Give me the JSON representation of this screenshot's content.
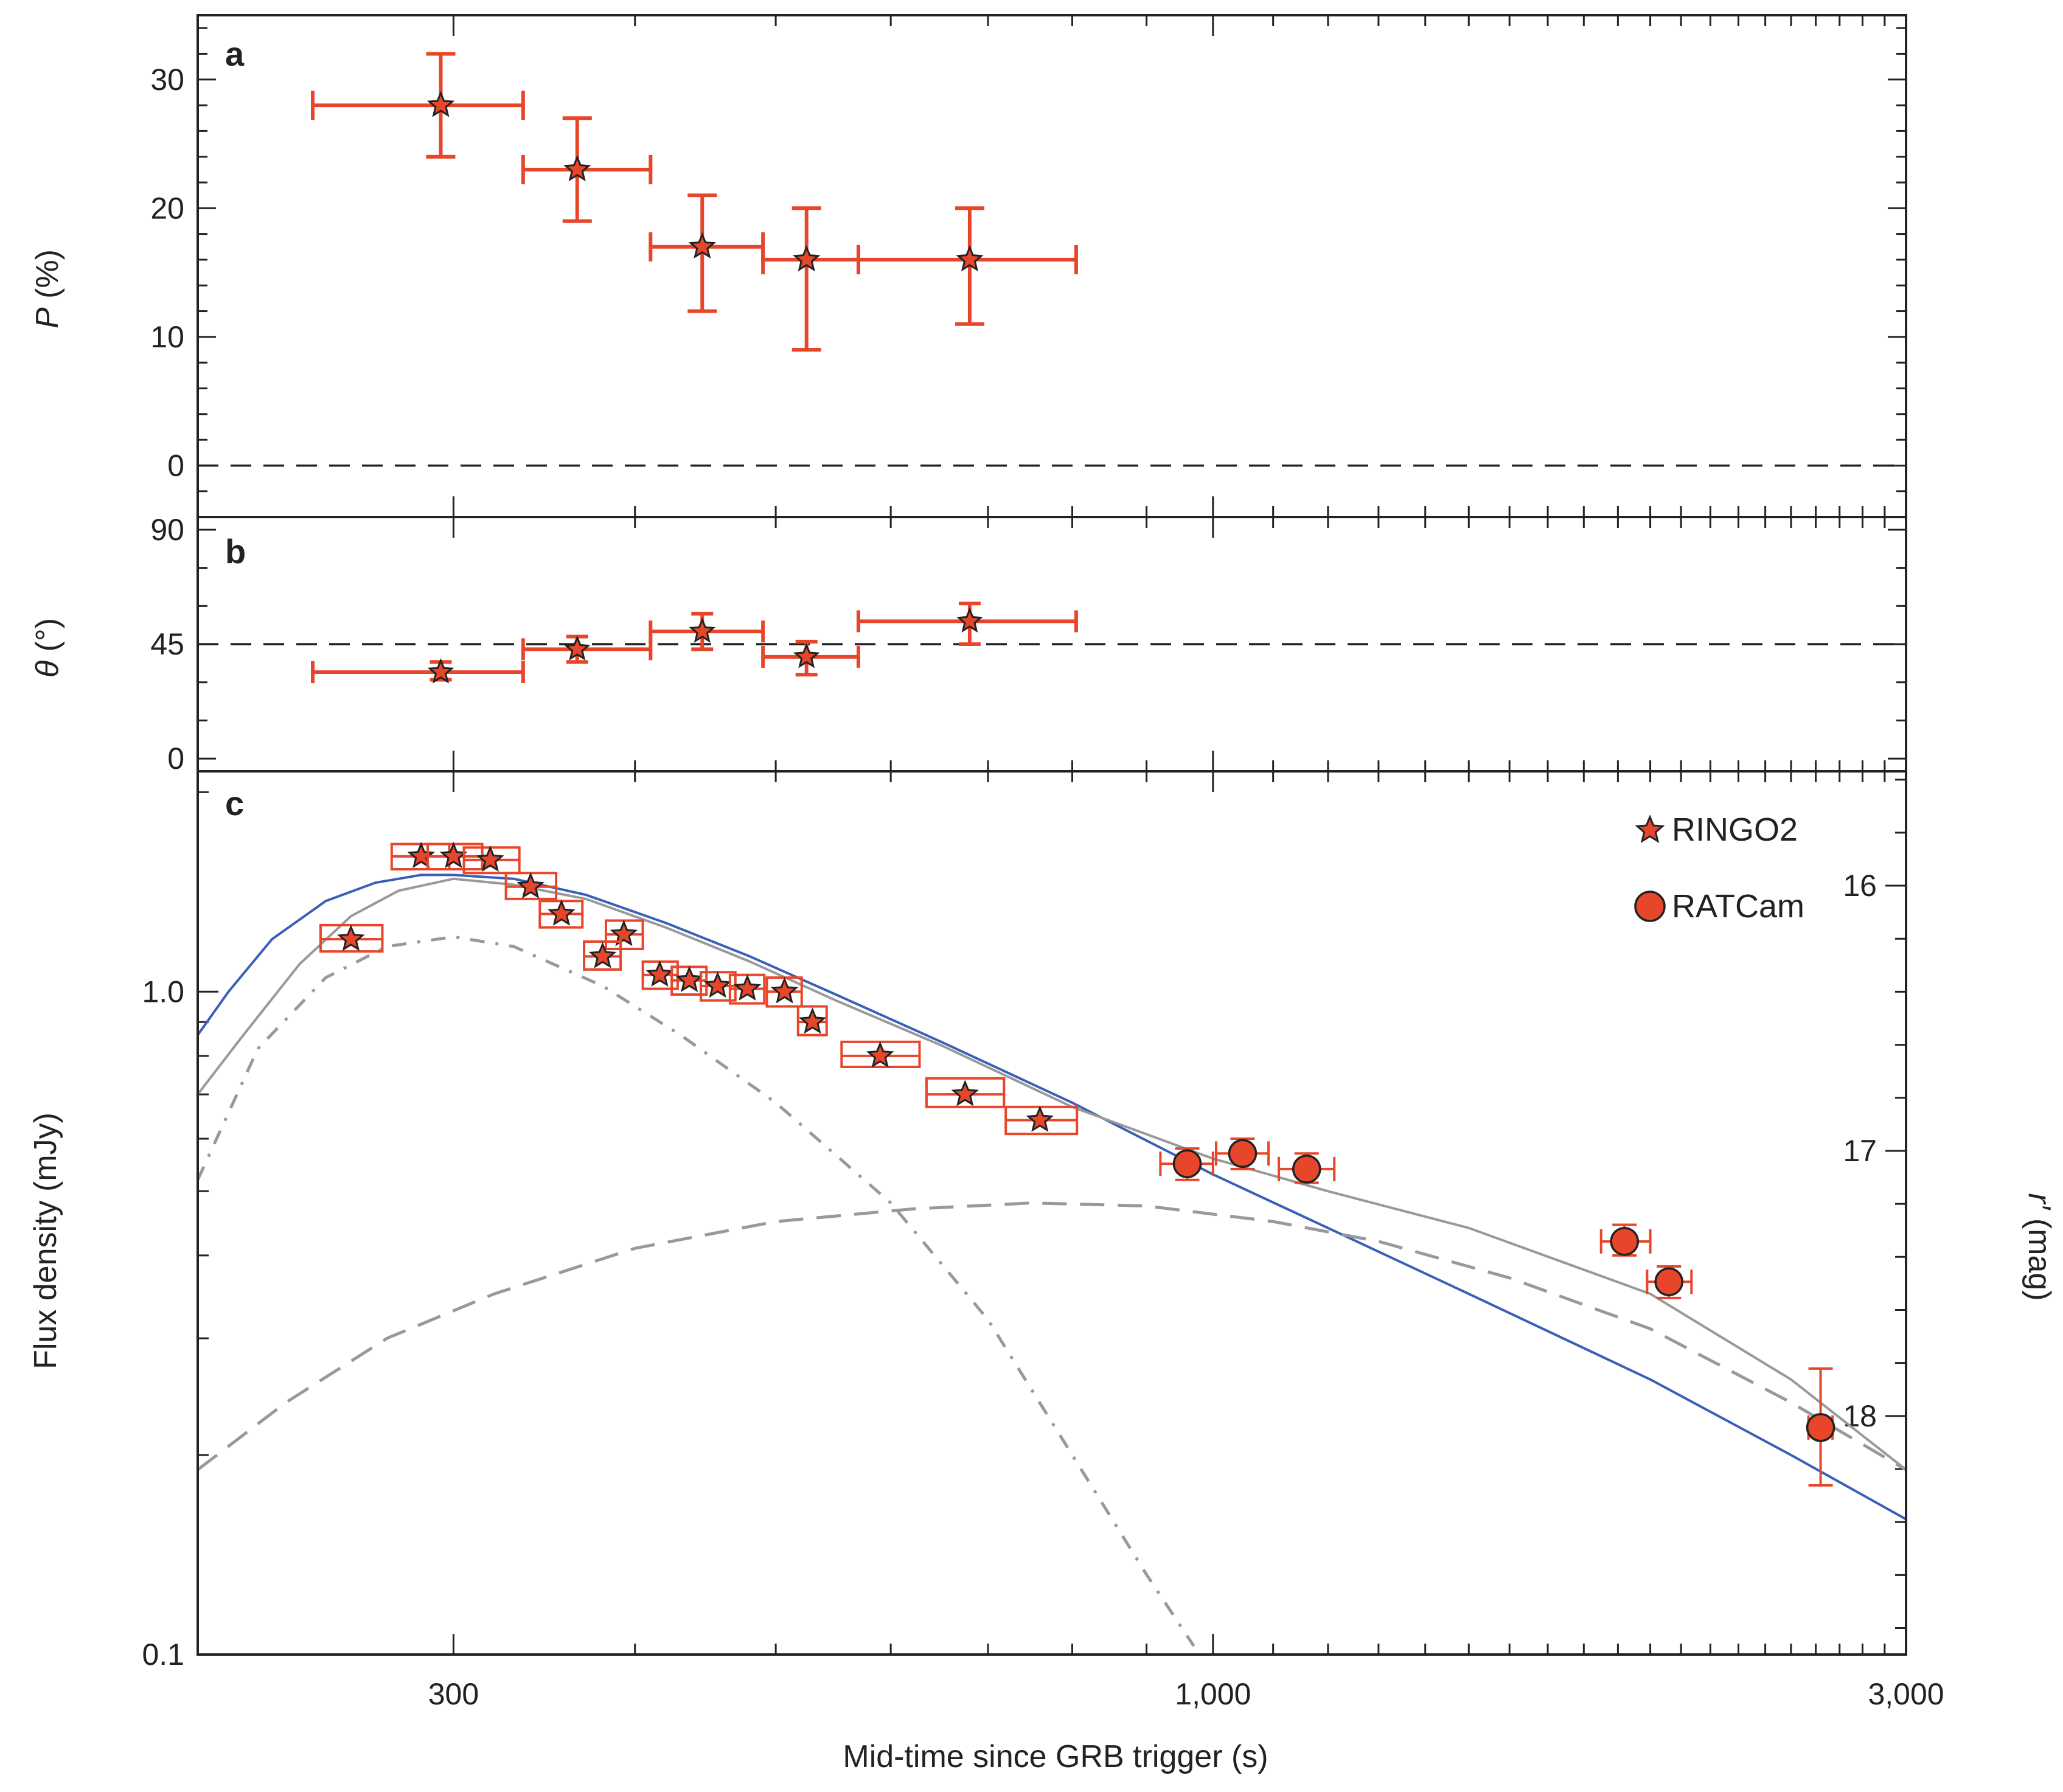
{
  "colors": {
    "marker": "#e8462a",
    "marker_edge": "#222222",
    "model_total": "#3a5fb8",
    "model_alt": "#999999",
    "components": "#999999",
    "reference": "#222222"
  },
  "chart_data": [
    {
      "type": "scatter",
      "panel": "a",
      "ylabel_symbol": "P",
      "ylabel_unit": " (%)",
      "xscale": "log",
      "xlim": [
        200,
        3000
      ],
      "ylim": [
        -4,
        35
      ],
      "yticks": [
        {
          "value": 0,
          "label": "0"
        },
        {
          "value": 10,
          "label": "10"
        },
        {
          "value": 20,
          "label": "20"
        },
        {
          "value": 30,
          "label": "30"
        }
      ],
      "reference_line": 0,
      "series": [
        {
          "name": "RINGO2",
          "points": [
            {
              "x": 294,
              "y": 28,
              "x_lo": 240,
              "x_hi": 335,
              "y_lo": 24,
              "y_hi": 32
            },
            {
              "x": 365,
              "y": 23,
              "x_lo": 335,
              "x_hi": 410,
              "y_lo": 19,
              "y_hi": 27
            },
            {
              "x": 445,
              "y": 17,
              "x_lo": 410,
              "x_hi": 490,
              "y_lo": 12,
              "y_hi": 21
            },
            {
              "x": 525,
              "y": 16,
              "x_lo": 490,
              "x_hi": 570,
              "y_lo": 9,
              "y_hi": 20
            },
            {
              "x": 680,
              "y": 16,
              "x_lo": 570,
              "x_hi": 805,
              "y_lo": 11,
              "y_hi": 20
            }
          ]
        }
      ]
    },
    {
      "type": "scatter",
      "panel": "b",
      "ylabel_symbol": "θ",
      "ylabel_unit": " (°)",
      "xscale": "log",
      "xlim": [
        200,
        3000
      ],
      "ylim": [
        -5,
        95
      ],
      "yticks": [
        {
          "value": 0,
          "label": "0"
        },
        {
          "value": 45,
          "label": "45"
        },
        {
          "value": 90,
          "label": "90"
        }
      ],
      "reference_line": 45,
      "series": [
        {
          "name": "RINGO2",
          "points": [
            {
              "x": 294,
              "y": 34,
              "x_lo": 240,
              "x_hi": 335,
              "y_lo": 31,
              "y_hi": 38
            },
            {
              "x": 365,
              "y": 43,
              "x_lo": 335,
              "x_hi": 410,
              "y_lo": 38,
              "y_hi": 48
            },
            {
              "x": 445,
              "y": 50,
              "x_lo": 410,
              "x_hi": 490,
              "y_lo": 43,
              "y_hi": 57
            },
            {
              "x": 525,
              "y": 40,
              "x_lo": 490,
              "x_hi": 570,
              "y_lo": 33,
              "y_hi": 46
            },
            {
              "x": 680,
              "y": 54,
              "x_lo": 570,
              "x_hi": 805,
              "y_lo": 45,
              "y_hi": 61
            }
          ]
        }
      ]
    },
    {
      "type": "scatter",
      "panel": "c",
      "title": "",
      "xlabel": "Mid-time since GRB trigger (s)",
      "ylabel": "Flux density (mJy)",
      "ylabel_right_symbol": "r′",
      "ylabel_right_unit": " (mag)",
      "xscale": "log",
      "yscale": "log",
      "xlim": [
        200,
        3000
      ],
      "ylim": [
        0.1,
        2.15
      ],
      "xticks": [
        {
          "value": 300,
          "label": "300"
        },
        {
          "value": 1000,
          "label": "1,000"
        },
        {
          "value": 3000,
          "label": "3,000"
        }
      ],
      "yticks": [
        {
          "value": 0.1,
          "label": "0.1"
        },
        {
          "value": 1.0,
          "label": "1.0"
        }
      ],
      "right_ticks": [
        {
          "value": 16,
          "label": "16"
        },
        {
          "value": 17,
          "label": "17"
        },
        {
          "value": 18,
          "label": "18"
        }
      ],
      "right_axis_zero_point_mag": 16,
      "right_axis_zero_point_flux": 1.445,
      "legend_position": "top-right",
      "legend": [
        {
          "label": "RINGO2",
          "marker": "star"
        },
        {
          "label": "RATCam",
          "marker": "circle"
        }
      ],
      "series": [
        {
          "name": "RINGO2",
          "marker": "star",
          "points": [
            {
              "x": 255,
              "y": 1.2,
              "x_lo": 243,
              "x_hi": 268,
              "y_lo": 1.15,
              "y_hi": 1.26
            },
            {
              "x": 285,
              "y": 1.6,
              "x_lo": 272,
              "x_hi": 298,
              "y_lo": 1.53,
              "y_hi": 1.67
            },
            {
              "x": 300,
              "y": 1.6,
              "x_lo": 288,
              "x_hi": 314,
              "y_lo": 1.53,
              "y_hi": 1.67
            },
            {
              "x": 318,
              "y": 1.58,
              "x_lo": 305,
              "x_hi": 333,
              "y_lo": 1.51,
              "y_hi": 1.65
            },
            {
              "x": 339,
              "y": 1.44,
              "x_lo": 326,
              "x_hi": 353,
              "y_lo": 1.38,
              "y_hi": 1.51
            },
            {
              "x": 356,
              "y": 1.31,
              "x_lo": 344,
              "x_hi": 368,
              "y_lo": 1.25,
              "y_hi": 1.37
            },
            {
              "x": 393,
              "y": 1.22,
              "x_lo": 382,
              "x_hi": 405,
              "y_lo": 1.16,
              "y_hi": 1.28
            },
            {
              "x": 380,
              "y": 1.13,
              "x_lo": 369,
              "x_hi": 391,
              "y_lo": 1.08,
              "y_hi": 1.19
            },
            {
              "x": 416,
              "y": 1.06,
              "x_lo": 405,
              "x_hi": 428,
              "y_lo": 1.01,
              "y_hi": 1.11
            },
            {
              "x": 436,
              "y": 1.04,
              "x_lo": 424,
              "x_hi": 448,
              "y_lo": 0.99,
              "y_hi": 1.09
            },
            {
              "x": 456,
              "y": 1.02,
              "x_lo": 444,
              "x_hi": 469,
              "y_lo": 0.97,
              "y_hi": 1.07
            },
            {
              "x": 478,
              "y": 1.01,
              "x_lo": 465,
              "x_hi": 491,
              "y_lo": 0.96,
              "y_hi": 1.06
            },
            {
              "x": 507,
              "y": 1.0,
              "x_lo": 493,
              "x_hi": 521,
              "y_lo": 0.95,
              "y_hi": 1.05
            },
            {
              "x": 530,
              "y": 0.9,
              "x_lo": 518,
              "x_hi": 542,
              "y_lo": 0.86,
              "y_hi": 0.95
            },
            {
              "x": 590,
              "y": 0.8,
              "x_lo": 555,
              "x_hi": 628,
              "y_lo": 0.77,
              "y_hi": 0.84
            },
            {
              "x": 675,
              "y": 0.7,
              "x_lo": 635,
              "x_hi": 718,
              "y_lo": 0.67,
              "y_hi": 0.74
            },
            {
              "x": 760,
              "y": 0.64,
              "x_lo": 720,
              "x_hi": 806,
              "y_lo": 0.61,
              "y_hi": 0.67
            }
          ]
        },
        {
          "name": "RATCam",
          "marker": "circle",
          "points": [
            {
              "x": 960,
              "y": 0.55,
              "x_lo": 920,
              "x_hi": 1000,
              "y_lo": 0.52,
              "y_hi": 0.58
            },
            {
              "x": 1048,
              "y": 0.57,
              "x_lo": 1005,
              "x_hi": 1092,
              "y_lo": 0.54,
              "y_hi": 0.6
            },
            {
              "x": 1160,
              "y": 0.54,
              "x_lo": 1110,
              "x_hi": 1212,
              "y_lo": 0.515,
              "y_hi": 0.57
            },
            {
              "x": 1920,
              "y": 0.42,
              "x_lo": 1850,
              "x_hi": 2000,
              "y_lo": 0.4,
              "y_hi": 0.445
            },
            {
              "x": 2060,
              "y": 0.365,
              "x_lo": 1990,
              "x_hi": 2135,
              "y_lo": 0.345,
              "y_hi": 0.385
            },
            {
              "x": 2620,
              "y": 0.22,
              "x_lo": 2570,
              "x_hi": 2670,
              "y_lo": 0.18,
              "y_hi": 0.27
            }
          ]
        }
      ],
      "models": [
        {
          "name": "blue solid",
          "style": "solid",
          "color": "#3a5fb8",
          "points": [
            [
              200,
              0.86
            ],
            [
              210,
              1.0
            ],
            [
              225,
              1.2
            ],
            [
              245,
              1.37
            ],
            [
              265,
              1.46
            ],
            [
              285,
              1.5
            ],
            [
              300,
              1.5
            ],
            [
              330,
              1.48
            ],
            [
              370,
              1.4
            ],
            [
              420,
              1.27
            ],
            [
              480,
              1.13
            ],
            [
              550,
              0.99
            ],
            [
              650,
              0.84
            ],
            [
              800,
              0.68
            ],
            [
              1000,
              0.53
            ],
            [
              1200,
              0.44
            ],
            [
              1500,
              0.35
            ],
            [
              2000,
              0.26
            ],
            [
              2500,
              0.2
            ],
            [
              3000,
              0.16
            ]
          ]
        },
        {
          "name": "grey solid",
          "style": "solid",
          "color": "#999999",
          "points": [
            [
              200,
              0.7
            ],
            [
              215,
              0.86
            ],
            [
              235,
              1.1
            ],
            [
              255,
              1.3
            ],
            [
              275,
              1.42
            ],
            [
              300,
              1.48
            ],
            [
              330,
              1.45
            ],
            [
              370,
              1.38
            ],
            [
              420,
              1.25
            ],
            [
              480,
              1.11
            ],
            [
              550,
              0.97
            ],
            [
              650,
              0.83
            ],
            [
              800,
              0.67
            ],
            [
              1000,
              0.56
            ],
            [
              1200,
              0.5
            ],
            [
              1500,
              0.44
            ],
            [
              2000,
              0.35
            ],
            [
              2500,
              0.26
            ],
            [
              3000,
              0.19
            ]
          ]
        },
        {
          "name": "grey dash-dot",
          "style": "dashdot",
          "color": "#999999",
          "points": [
            [
              200,
              0.52
            ],
            [
              220,
              0.82
            ],
            [
              245,
              1.05
            ],
            [
              270,
              1.17
            ],
            [
              300,
              1.21
            ],
            [
              330,
              1.17
            ],
            [
              380,
              1.02
            ],
            [
              430,
              0.86
            ],
            [
              500,
              0.68
            ],
            [
              600,
              0.48
            ],
            [
              700,
              0.32
            ],
            [
              800,
              0.2
            ],
            [
              900,
              0.132
            ],
            [
              970,
              0.103
            ]
          ]
        },
        {
          "name": "grey dashed",
          "style": "dashed",
          "color": "#999999",
          "points": [
            [
              200,
              0.19
            ],
            [
              230,
              0.24
            ],
            [
              270,
              0.3
            ],
            [
              320,
              0.35
            ],
            [
              400,
              0.41
            ],
            [
              500,
              0.45
            ],
            [
              620,
              0.47
            ],
            [
              750,
              0.48
            ],
            [
              900,
              0.475
            ],
            [
              1100,
              0.45
            ],
            [
              1300,
              0.42
            ],
            [
              1600,
              0.37
            ],
            [
              2000,
              0.31
            ],
            [
              2500,
              0.24
            ],
            [
              3000,
              0.19
            ]
          ]
        }
      ]
    }
  ]
}
